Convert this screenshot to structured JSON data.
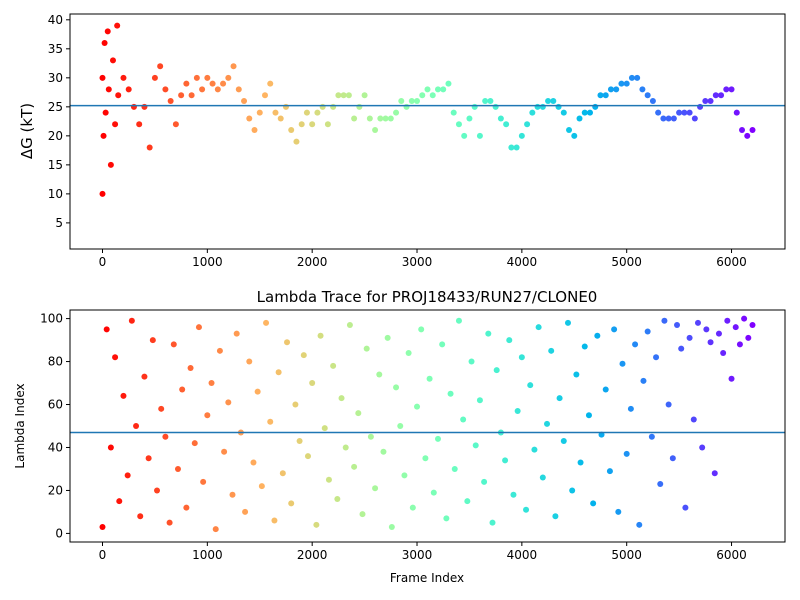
{
  "chart_data": [
    {
      "type": "scatter",
      "ylabel": "ΔG (kT)",
      "colormap": "rainbow",
      "colormap_reversed": true,
      "x": [
        0,
        0,
        10,
        20,
        30,
        50,
        60,
        80,
        100,
        120,
        140,
        150,
        200,
        250,
        300,
        350,
        400,
        450,
        500,
        550,
        600,
        650,
        700,
        750,
        800,
        850,
        900,
        950,
        1000,
        1050,
        1100,
        1150,
        1200,
        1250,
        1300,
        1350,
        1400,
        1450,
        1500,
        1550,
        1600,
        1650,
        1700,
        1750,
        1800,
        1850,
        1900,
        1950,
        2000,
        2050,
        2100,
        2150,
        2200,
        2250,
        2300,
        2350,
        2400,
        2450,
        2500,
        2550,
        2600,
        2650,
        2700,
        2750,
        2800,
        2850,
        2900,
        2950,
        3000,
        3050,
        3100,
        3150,
        3200,
        3250,
        3300,
        3350,
        3400,
        3450,
        3500,
        3550,
        3600,
        3650,
        3700,
        3750,
        3800,
        3850,
        3900,
        3950,
        4000,
        4050,
        4100,
        4150,
        4200,
        4250,
        4300,
        4350,
        4400,
        4450,
        4500,
        4550,
        4600,
        4650,
        4700,
        4750,
        4800,
        4850,
        4900,
        4950,
        5000,
        5050,
        5100,
        5150,
        5200,
        5250,
        5300,
        5350,
        5400,
        5450,
        5500,
        5550,
        5600,
        5650,
        5700,
        5750,
        5800,
        5850,
        5900,
        5950,
        6000,
        6050,
        6100,
        6150,
        6200
      ],
      "values": [
        10,
        30,
        20,
        36,
        24,
        38,
        28,
        15,
        33,
        22,
        39,
        27,
        30,
        28,
        25,
        22,
        25,
        18,
        30,
        32,
        28,
        26,
        22,
        27,
        29,
        27,
        30,
        28,
        30,
        29,
        28,
        29,
        30,
        32,
        28,
        26,
        23,
        21,
        24,
        27,
        29,
        24,
        23,
        25,
        21,
        19,
        22,
        24,
        22,
        24,
        25,
        22,
        25,
        27,
        27,
        27,
        23,
        25,
        27,
        23,
        21,
        23,
        23,
        23,
        24,
        26,
        25,
        26,
        26,
        27,
        28,
        27,
        28,
        28,
        29,
        24,
        22,
        20,
        23,
        25,
        20,
        26,
        26,
        25,
        23,
        22,
        18,
        18,
        20,
        22,
        24,
        25,
        25,
        26,
        26,
        25,
        24,
        21,
        20,
        23,
        24,
        24,
        25,
        27,
        27,
        28,
        28,
        29,
        29,
        30,
        30,
        28,
        27,
        26,
        24,
        23,
        23,
        23,
        24,
        24,
        24,
        23,
        25,
        26,
        26,
        27,
        27,
        28,
        28,
        24,
        21,
        20,
        21
      ],
      "hline": 25.2,
      "hline_color": "#1f77b4",
      "xlim": [
        -310,
        6510
      ],
      "xticks": [
        0,
        1000,
        2000,
        3000,
        4000,
        5000,
        6000
      ],
      "ylim": [
        0.5,
        41
      ],
      "yticks": [
        5,
        10,
        15,
        20,
        25,
        30,
        35,
        40
      ]
    },
    {
      "type": "scatter",
      "title": "Lambda Trace for PROJ18433/RUN27/CLONE0",
      "xlabel": "Frame Index",
      "ylabel": "Lambda Index",
      "colormap": "rainbow",
      "colormap_reversed": true,
      "x": [
        0,
        40,
        80,
        120,
        160,
        200,
        240,
        280,
        320,
        360,
        400,
        440,
        480,
        520,
        560,
        600,
        640,
        680,
        720,
        760,
        800,
        840,
        880,
        920,
        960,
        1000,
        1040,
        1080,
        1120,
        1160,
        1200,
        1240,
        1280,
        1320,
        1360,
        1400,
        1440,
        1480,
        1520,
        1560,
        1600,
        1640,
        1680,
        1720,
        1760,
        1800,
        1840,
        1880,
        1920,
        1960,
        2000,
        2040,
        2080,
        2120,
        2160,
        2200,
        2240,
        2280,
        2320,
        2360,
        2400,
        2440,
        2480,
        2520,
        2560,
        2600,
        2640,
        2680,
        2720,
        2760,
        2800,
        2840,
        2880,
        2920,
        2960,
        3000,
        3040,
        3080,
        3120,
        3160,
        3200,
        3240,
        3280,
        3320,
        3360,
        3400,
        3440,
        3480,
        3520,
        3560,
        3600,
        3640,
        3680,
        3720,
        3760,
        3800,
        3840,
        3880,
        3920,
        3960,
        4000,
        4040,
        4080,
        4120,
        4160,
        4200,
        4240,
        4280,
        4320,
        4360,
        4400,
        4440,
        4480,
        4520,
        4560,
        4600,
        4640,
        4680,
        4720,
        4760,
        4800,
        4840,
        4880,
        4920,
        4960,
        5000,
        5040,
        5080,
        5120,
        5160,
        5200,
        5240,
        5280,
        5320,
        5360,
        5400,
        5440,
        5480,
        5520,
        5560,
        5600,
        5640,
        5680,
        5720,
        5760,
        5800,
        5840,
        5880,
        5920,
        5960,
        6000,
        6040,
        6080,
        6120,
        6160,
        6200
      ],
      "values": [
        3,
        95,
        40,
        82,
        15,
        64,
        27,
        99,
        50,
        8,
        73,
        35,
        90,
        20,
        58,
        45,
        5,
        88,
        30,
        67,
        12,
        77,
        42,
        96,
        24,
        55,
        70,
        2,
        85,
        38,
        61,
        18,
        93,
        47,
        10,
        80,
        33,
        66,
        22,
        98,
        52,
        6,
        75,
        28,
        89,
        14,
        60,
        43,
        83,
        36,
        70,
        4,
        92,
        49,
        25,
        78,
        16,
        63,
        40,
        97,
        31,
        56,
        9,
        86,
        45,
        21,
        74,
        38,
        91,
        3,
        68,
        50,
        27,
        84,
        12,
        59,
        95,
        35,
        72,
        19,
        44,
        88,
        7,
        65,
        30,
        99,
        53,
        15,
        80,
        41,
        62,
        24,
        93,
        5,
        76,
        47,
        34,
        90,
        18,
        57,
        82,
        11,
        69,
        39,
        96,
        26,
        51,
        85,
        8,
        63,
        43,
        98,
        20,
        74,
        33,
        87,
        55,
        14,
        92,
        46,
        67,
        29,
        95,
        10,
        79,
        37,
        58,
        88,
        4,
        71,
        94,
        45,
        82,
        23,
        99,
        60,
        35,
        97,
        86,
        12,
        91,
        53,
        98,
        40,
        95,
        89,
        28,
        93,
        84,
        99,
        72,
        96,
        88,
        100,
        91,
        97
      ],
      "hline": 47,
      "hline_color": "#1f77b4",
      "xlim": [
        -310,
        6510
      ],
      "xticks": [
        0,
        1000,
        2000,
        3000,
        4000,
        5000,
        6000
      ],
      "ylim": [
        -4,
        104
      ],
      "yticks": [
        0,
        20,
        40,
        60,
        80,
        100
      ]
    }
  ]
}
